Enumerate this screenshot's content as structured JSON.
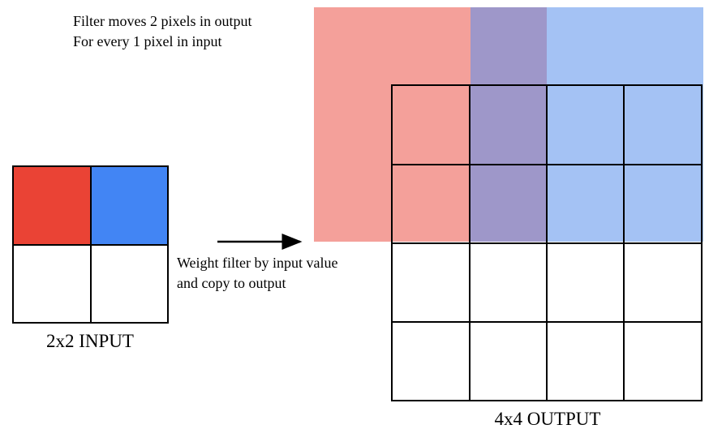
{
  "annotation": {
    "lines": [
      "Filter moves 2 pixels in output",
      "For every 1 pixel in input"
    ]
  },
  "input": {
    "label": "2x2 INPUT"
  },
  "operation": {
    "lines": [
      "Weight filter by input value",
      "and copy to output"
    ]
  },
  "output": {
    "label": "4x4 OUTPUT"
  }
}
